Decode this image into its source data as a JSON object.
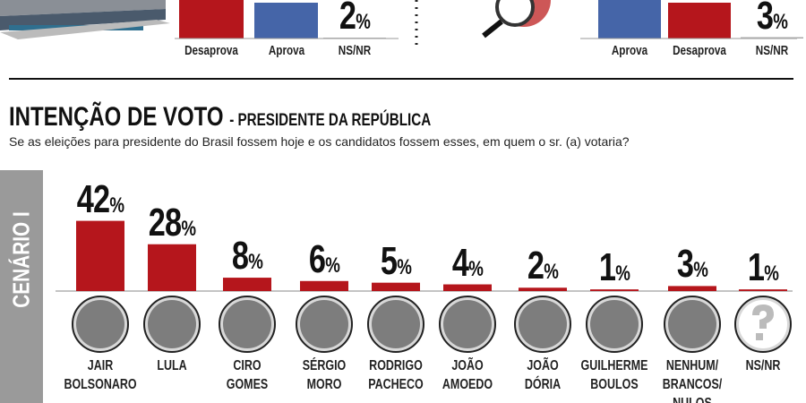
{
  "approval_panels": [
    {
      "categories": [
        "Desaprova",
        "Aprova",
        "NS/NR"
      ],
      "ns_value": 2,
      "unit": "%"
    },
    {
      "categories": [
        "Aprova",
        "Desaprova",
        "NS/NR"
      ],
      "ns_value": 3,
      "unit": "%"
    }
  ],
  "chart_data": {
    "type": "bar",
    "title": "INTENÇÃO DE VOTO",
    "subtitle": "- PRESIDENTE DA REPÚBLICA",
    "question": "Se as eleições para presidente do Brasil fossem hoje e os candidatos fossem esses, em quem o sr. (a) votaria?",
    "scenario": "CENÁRIO I",
    "unit": "%",
    "categories": [
      "JAIR\nBOLSONARO",
      "LULA",
      "CIRO\nGOMES",
      "SÉRGIO\nMORO",
      "RODRIGO\nPACHECO",
      "JOÃO\nAMOEDO",
      "JOÃO\nDÓRIA",
      "GUILHERME\nBOULOS",
      "NENHUM/\nBRANCOS/\nNULOS",
      "NS/NR"
    ],
    "values": [
      42,
      28,
      8,
      6,
      5,
      4,
      2,
      1,
      3,
      1
    ],
    "color": "#b5161c",
    "ylim": [
      0,
      45
    ]
  }
}
